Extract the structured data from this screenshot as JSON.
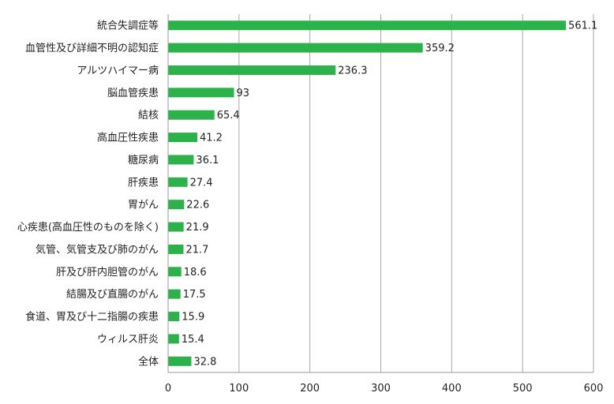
{
  "chart_data": {
    "type": "bar",
    "orientation": "horizontal",
    "categories": [
      "統合失調症等",
      "血管性及び詳細不明の認知症",
      "アルツハイマー病",
      "脳血管疾患",
      "結核",
      "高血圧性疾患",
      "糖尿病",
      "肝疾患",
      "胃がん",
      "心疾患(高血圧性のものを除く)",
      "気管、気管支及び肺のがん",
      "肝及び肝内胆管のがん",
      "結腸及び直腸のがん",
      "食道、胃及び十二指腸の疾患",
      "ウィルス肝炎",
      "全体"
    ],
    "values": [
      561.1,
      359.2,
      236.3,
      93,
      65.4,
      41.2,
      36.1,
      27.4,
      22.6,
      21.9,
      21.7,
      18.6,
      17.5,
      15.9,
      15.4,
      32.8
    ],
    "value_labels": [
      "561.1",
      "359.2",
      "236.3",
      "93",
      "65.4",
      "41.2",
      "36.1",
      "27.4",
      "22.6",
      "21.9",
      "21.7",
      "18.6",
      "17.5",
      "15.9",
      "15.4",
      "32.8"
    ],
    "xlim": [
      0,
      600
    ],
    "x_ticks": [
      "0",
      "100",
      "200",
      "300",
      "400",
      "500",
      "600"
    ],
    "grid": "vertical",
    "legend": "none",
    "bar_color": "#2db14b",
    "title": "",
    "xlabel": "",
    "ylabel": ""
  }
}
